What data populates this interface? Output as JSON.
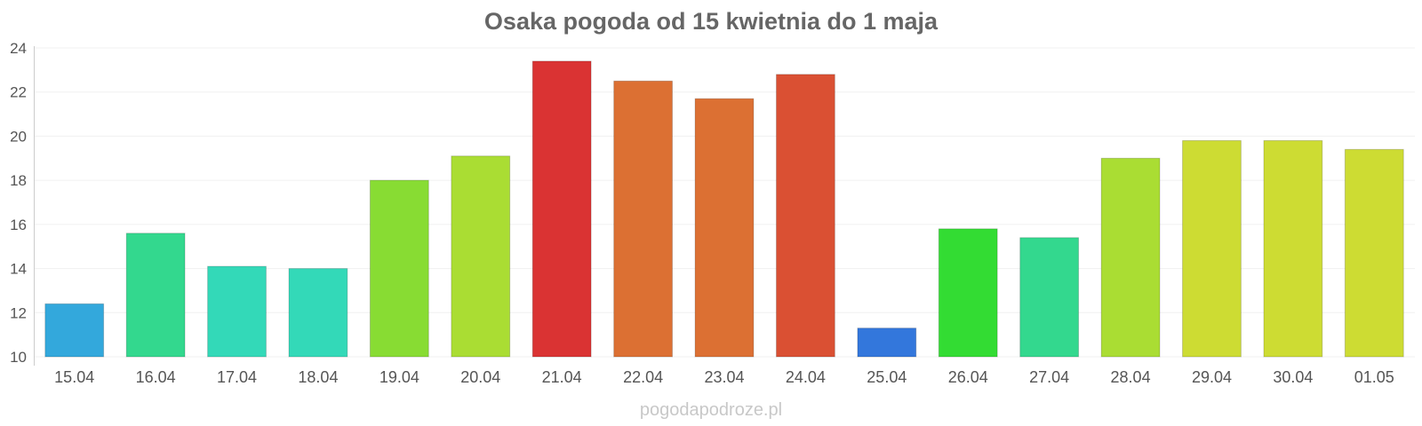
{
  "chart_data": {
    "type": "bar",
    "title": "Osaka pogoda od 15 kwietnia do 1 maja",
    "xlabel": "",
    "ylabel": "",
    "ylim": [
      10,
      24
    ],
    "yticks": [
      "10",
      "12",
      "14",
      "16",
      "18",
      "20",
      "22",
      "24"
    ],
    "grid": true,
    "legend": "none",
    "categories": [
      "15.04",
      "16.04",
      "17.04",
      "18.04",
      "19.04",
      "20.04",
      "21.04",
      "22.04",
      "23.04",
      "24.04",
      "25.04",
      "26.04",
      "27.04",
      "28.04",
      "29.04",
      "30.04",
      "01.05"
    ],
    "values": [
      12.4,
      15.6,
      14.1,
      14.0,
      18.0,
      19.1,
      23.4,
      22.5,
      21.7,
      22.8,
      11.3,
      15.8,
      15.4,
      19.0,
      19.8,
      19.8,
      19.4
    ],
    "colors": [
      "#33a8dc",
      "#33d88e",
      "#33d9b8",
      "#33d9b8",
      "#88dc33",
      "#aadd33",
      "#da3333",
      "#dc7033",
      "#dc7033",
      "#da5033",
      "#3377dc",
      "#33dc33",
      "#33d88e",
      "#aadd33",
      "#cddc33",
      "#cddc33",
      "#cddc33"
    ]
  },
  "credit": "pogodapodroze.pl"
}
